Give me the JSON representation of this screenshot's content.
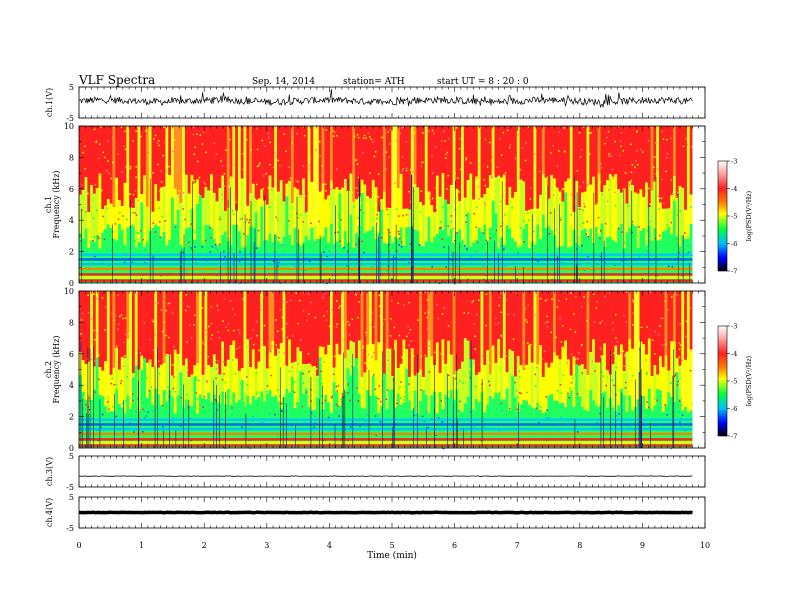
{
  "header": {
    "title": "VLF  Spectra",
    "date": "Sep. 14, 2014",
    "station": "station= ATH",
    "start": "start  UT  =   8 : 20 : 0"
  },
  "colors": {
    "spectrum_stops": [
      "#000000",
      "#0000ff",
      "#00bfff",
      "#00ff40",
      "#ffff00",
      "#ff8000",
      "#ff2020",
      "#ffb0b0",
      "#ffffff"
    ],
    "trace": "#000000",
    "axis": "#000000"
  },
  "chart_data": [
    {
      "type": "line",
      "panel": "ch1-waveform",
      "ylabel": "ch.1(V)",
      "ylim": [
        -5,
        5
      ],
      "yticks": [
        5,
        -5
      ],
      "xlim": [
        0,
        9.8
      ],
      "description_value": "noisy waveform centered near +0.5 V, envelope about -1.5 to +2 V"
    },
    {
      "type": "heatmap",
      "panel": "ch1-spectrogram",
      "ylabel": "Frequency  (kHz)",
      "channel_label": "ch.1",
      "ylim": [
        0,
        10
      ],
      "yticks": [
        0,
        2,
        4,
        6,
        8,
        10
      ],
      "xlim": [
        0,
        9.8
      ],
      "colorbar": {
        "label": "log(PSD(V²/Hz)",
        "ticks": [
          -3,
          -4,
          -5,
          -6,
          -7
        ],
        "range": [
          -7,
          -3
        ]
      }
    },
    {
      "type": "heatmap",
      "panel": "ch2-spectrogram",
      "ylabel": "Frequency  (kHz)",
      "channel_label": "ch.2",
      "ylim": [
        0,
        10
      ],
      "yticks": [
        0,
        2,
        4,
        6,
        8,
        10
      ],
      "xlim": [
        0,
        9.8
      ],
      "colorbar": {
        "label": "log(PSD(V²/Hz)",
        "ticks": [
          -3,
          -4,
          -5,
          -6,
          -7
        ],
        "range": [
          -7,
          -3
        ]
      }
    },
    {
      "type": "line",
      "panel": "ch3-waveform",
      "ylabel": "ch.3(V)",
      "ylim": [
        -5,
        5
      ],
      "yticks": [
        5,
        -5
      ],
      "xlim": [
        0,
        9.8
      ],
      "level": -1.5
    },
    {
      "type": "line",
      "panel": "ch4-waveform",
      "ylabel": "ch.4(V)",
      "ylim": [
        -5,
        5
      ],
      "yticks": [
        5,
        -5
      ],
      "xlim": [
        0,
        9.8
      ],
      "level": 0
    }
  ],
  "xaxis": {
    "label": "Time  (min)",
    "ticks": [
      0,
      1,
      2,
      3,
      4,
      5,
      6,
      7,
      8,
      9,
      10
    ],
    "range": [
      0,
      10
    ]
  }
}
